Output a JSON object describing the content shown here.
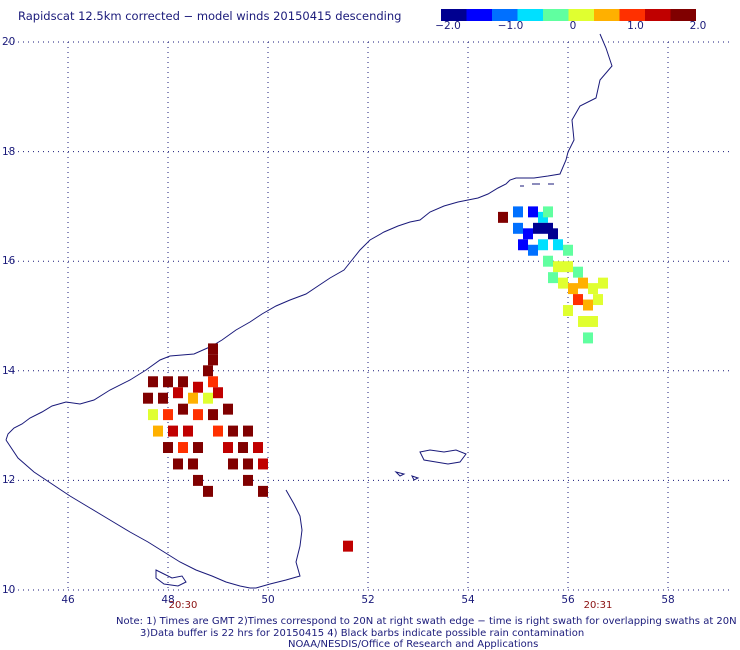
{
  "title": "Rapidscat 12.5km corrected − model winds 20150415 descending",
  "colorbar": {
    "min": -2.0,
    "max": 2.0,
    "ticks": [
      {
        "value": -2.0,
        "label": "−2.0"
      },
      {
        "value": -1.0,
        "label": "−1.0"
      },
      {
        "value": 0,
        "label": "0"
      },
      {
        "value": 1.0,
        "label": "1.0"
      },
      {
        "value": 2.0,
        "label": "2.0"
      }
    ],
    "colors": [
      "#000090",
      "#0000ff",
      "#0070ff",
      "#00e0ff",
      "#60ffa0",
      "#e0ff30",
      "#ffb000",
      "#ff3000",
      "#c00000",
      "#800000"
    ]
  },
  "axes": {
    "lon_range": [
      44.8,
      59.3
    ],
    "lat_range": [
      10,
      20
    ],
    "lon_ticks": [
      "46",
      "48",
      "50",
      "52",
      "54",
      "56",
      "58"
    ],
    "lat_ticks": [
      "10",
      "12",
      "14",
      "16",
      "18",
      "20"
    ]
  },
  "swath_times": [
    {
      "lon": 48.3,
      "label": "20:30"
    },
    {
      "lon": 56.6,
      "label": "20:31"
    }
  ],
  "notes": [
    "Note: 1) Times are GMT 2)Times correspond to 20N at right swath edge − time is right swath for overlapping swaths at 20N",
    "3)Data buffer is 22 hrs for 20150415 4) Black barbs indicate possible rain contamination",
    "NOAA/NESDIS/Office of Research and Applications"
  ],
  "colors": {
    "coast": "#1a1a7a",
    "grid": "#1a1a7a",
    "text": "#1a1a7a",
    "time_text": "#8a1010"
  },
  "chart_data": {
    "type": "heatmap",
    "cell_size_deg": 0.125,
    "units": "m/s",
    "cells": [
      {
        "lon": 54.7,
        "lat": 16.8,
        "v": 1.9
      },
      {
        "lon": 55.0,
        "lat": 16.9,
        "v": -1.2
      },
      {
        "lon": 55.3,
        "lat": 16.9,
        "v": -1.4
      },
      {
        "lon": 55.5,
        "lat": 16.8,
        "v": -0.6
      },
      {
        "lon": 55.6,
        "lat": 16.9,
        "v": -0.3
      },
      {
        "lon": 55.4,
        "lat": 16.6,
        "v": -1.7
      },
      {
        "lon": 55.6,
        "lat": 16.6,
        "v": -1.6
      },
      {
        "lon": 55.7,
        "lat": 16.5,
        "v": -1.9
      },
      {
        "lon": 55.2,
        "lat": 16.5,
        "v": -1.5
      },
      {
        "lon": 55.0,
        "lat": 16.6,
        "v": -1.0
      },
      {
        "lon": 55.1,
        "lat": 16.3,
        "v": -1.3
      },
      {
        "lon": 55.3,
        "lat": 16.2,
        "v": -0.9
      },
      {
        "lon": 55.5,
        "lat": 16.3,
        "v": -0.5
      },
      {
        "lon": 55.8,
        "lat": 16.3,
        "v": -0.7
      },
      {
        "lon": 56.0,
        "lat": 16.2,
        "v": -0.2
      },
      {
        "lon": 55.6,
        "lat": 16.0,
        "v": -0.3
      },
      {
        "lon": 55.8,
        "lat": 15.9,
        "v": 0.1
      },
      {
        "lon": 56.0,
        "lat": 15.9,
        "v": 0.2
      },
      {
        "lon": 56.2,
        "lat": 15.8,
        "v": -0.1
      },
      {
        "lon": 55.7,
        "lat": 15.7,
        "v": -0.2
      },
      {
        "lon": 55.9,
        "lat": 15.6,
        "v": 0.0
      },
      {
        "lon": 56.1,
        "lat": 15.5,
        "v": 0.4
      },
      {
        "lon": 56.3,
        "lat": 15.6,
        "v": 0.6
      },
      {
        "lon": 56.5,
        "lat": 15.5,
        "v": 0.3
      },
      {
        "lon": 56.7,
        "lat": 15.6,
        "v": 0.1
      },
      {
        "lon": 56.2,
        "lat": 15.3,
        "v": 0.8
      },
      {
        "lon": 56.4,
        "lat": 15.2,
        "v": 0.6
      },
      {
        "lon": 56.6,
        "lat": 15.3,
        "v": 0.2
      },
      {
        "lon": 56.0,
        "lat": 15.1,
        "v": 0.0
      },
      {
        "lon": 56.3,
        "lat": 14.9,
        "v": 0.3
      },
      {
        "lon": 56.5,
        "lat": 14.9,
        "v": 0.1
      },
      {
        "lon": 56.4,
        "lat": 14.6,
        "v": -0.1
      },
      {
        "lon": 48.9,
        "lat": 14.4,
        "v": 1.6
      },
      {
        "lon": 48.9,
        "lat": 14.2,
        "v": 1.8
      },
      {
        "lon": 48.8,
        "lat": 14.0,
        "v": 2.0
      },
      {
        "lon": 47.7,
        "lat": 13.8,
        "v": 2.0
      },
      {
        "lon": 48.0,
        "lat": 13.8,
        "v": 2.0
      },
      {
        "lon": 48.3,
        "lat": 13.8,
        "v": 2.0
      },
      {
        "lon": 48.6,
        "lat": 13.7,
        "v": 1.2
      },
      {
        "lon": 48.9,
        "lat": 13.8,
        "v": 0.9
      },
      {
        "lon": 47.6,
        "lat": 13.5,
        "v": 1.9
      },
      {
        "lon": 47.9,
        "lat": 13.5,
        "v": 1.7
      },
      {
        "lon": 48.2,
        "lat": 13.6,
        "v": 1.4
      },
      {
        "lon": 48.5,
        "lat": 13.5,
        "v": 0.5
      },
      {
        "lon": 48.8,
        "lat": 13.5,
        "v": 0.1
      },
      {
        "lon": 49.0,
        "lat": 13.6,
        "v": 1.3
      },
      {
        "lon": 47.7,
        "lat": 13.2,
        "v": 0.3
      },
      {
        "lon": 48.0,
        "lat": 13.2,
        "v": 1.0
      },
      {
        "lon": 48.3,
        "lat": 13.3,
        "v": 1.9
      },
      {
        "lon": 48.6,
        "lat": 13.2,
        "v": 1.0
      },
      {
        "lon": 48.9,
        "lat": 13.2,
        "v": 2.0
      },
      {
        "lon": 49.2,
        "lat": 13.3,
        "v": 1.6
      },
      {
        "lon": 47.8,
        "lat": 12.9,
        "v": 0.7
      },
      {
        "lon": 48.1,
        "lat": 12.9,
        "v": 1.2
      },
      {
        "lon": 48.4,
        "lat": 12.9,
        "v": 1.5
      },
      {
        "lon": 49.0,
        "lat": 12.9,
        "v": 0.8
      },
      {
        "lon": 49.3,
        "lat": 12.9,
        "v": 1.8
      },
      {
        "lon": 49.6,
        "lat": 12.9,
        "v": 1.7
      },
      {
        "lon": 48.0,
        "lat": 12.6,
        "v": 1.8
      },
      {
        "lon": 48.3,
        "lat": 12.6,
        "v": 0.9
      },
      {
        "lon": 48.6,
        "lat": 12.6,
        "v": 1.7
      },
      {
        "lon": 49.2,
        "lat": 12.6,
        "v": 1.3
      },
      {
        "lon": 49.5,
        "lat": 12.6,
        "v": 1.9
      },
      {
        "lon": 49.8,
        "lat": 12.6,
        "v": 1.4
      },
      {
        "lon": 48.2,
        "lat": 12.3,
        "v": 2.0
      },
      {
        "lon": 48.5,
        "lat": 12.3,
        "v": 2.0
      },
      {
        "lon": 49.3,
        "lat": 12.3,
        "v": 2.0
      },
      {
        "lon": 49.6,
        "lat": 12.3,
        "v": 1.8
      },
      {
        "lon": 49.9,
        "lat": 12.3,
        "v": 1.2
      },
      {
        "lon": 48.6,
        "lat": 12.0,
        "v": 2.0
      },
      {
        "lon": 49.6,
        "lat": 12.0,
        "v": 2.0
      },
      {
        "lon": 48.8,
        "lat": 11.8,
        "v": 2.0
      },
      {
        "lon": 49.9,
        "lat": 11.8,
        "v": 2.0
      },
      {
        "lon": 51.6,
        "lat": 10.8,
        "v": 1.4
      }
    ]
  }
}
